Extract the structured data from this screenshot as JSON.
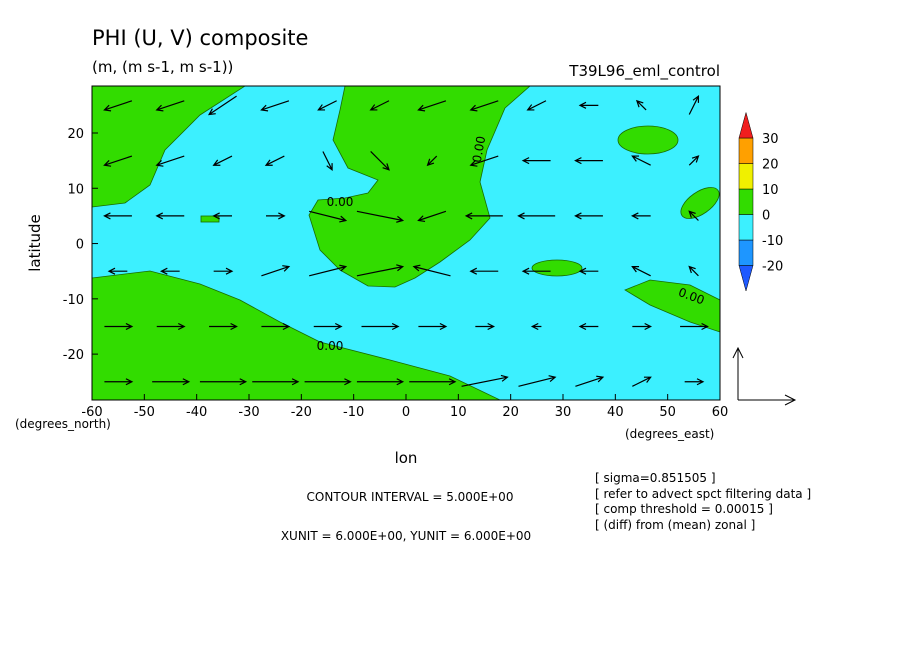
{
  "chart_data": {
    "type": "vector_contour",
    "title": "PHI (U, V) composite",
    "subtitle": "(m, (m s-1, m s-1))",
    "run_label": "T39L96_eml_control",
    "x_label": "lon",
    "y_label": "latitude",
    "y_units": "(degrees_north)",
    "x_units": "(degrees_east)",
    "xlim": [
      -60,
      60
    ],
    "ylim": [
      -28.3,
      28.5
    ],
    "xticks": [
      -60,
      -50,
      -40,
      -30,
      -20,
      -10,
      0,
      10,
      20,
      30,
      40,
      50,
      60
    ],
    "yticks": [
      -20,
      -10,
      0,
      10,
      20
    ],
    "contour_label": "0.00",
    "levels": [
      -20,
      -10,
      0,
      10,
      20,
      30
    ],
    "colors": [
      "#1e5aff",
      "#1e96ff",
      "#3cf0ff",
      "#32dc00",
      "#f0f000",
      "#ffa000",
      "#f01e1e"
    ],
    "contour_interval_text": "CONTOUR INTERVAL = 5.000E+00",
    "unit_text": "XUNIT = 6.000E+00, YUNIT = 6.000E+00",
    "notes": [
      "[ sigma=0.851505 ]",
      "[ refer to advect spct filtering data ]",
      "[ comp threshold = 0.00015 ]",
      "[ (diff) from (mean) zonal ]"
    ],
    "vectors": {
      "lon": [
        -55,
        -45,
        -35,
        -25,
        -15,
        -5,
        5,
        15,
        25,
        35,
        45,
        55
      ],
      "lat": [
        25,
        15,
        5,
        -5,
        -15,
        -25
      ],
      "u": [
        [
          -3,
          -3,
          -3,
          -3,
          -2,
          -2,
          -3,
          -3,
          -2,
          -2,
          -1,
          1
        ],
        [
          -3,
          -3,
          -2,
          -2,
          1,
          2,
          -1,
          -3,
          -3,
          -3,
          -2,
          1
        ],
        [
          -3,
          -3,
          -2,
          2,
          4,
          5,
          -3,
          -4,
          -4,
          -3,
          -2,
          -1
        ],
        [
          -2,
          -2,
          2,
          3,
          4,
          5,
          -4,
          -3,
          -3,
          -2,
          -2,
          -1
        ],
        [
          3,
          3,
          3,
          3,
          3,
          4,
          3,
          2,
          -1,
          -2,
          2,
          3
        ],
        [
          3,
          4,
          5,
          5,
          5,
          5,
          5,
          5,
          4,
          3,
          2,
          2
        ]
      ],
      "v": [
        [
          -1,
          -1,
          -2,
          -1,
          -1,
          -1,
          -1,
          -1,
          -1,
          0,
          1,
          2
        ],
        [
          -1,
          -1,
          -1,
          -1,
          -2,
          -2,
          -1,
          -1,
          0,
          0,
          1,
          1
        ],
        [
          0,
          0,
          0,
          0,
          -1,
          -1,
          -1,
          0,
          0,
          0,
          0,
          1
        ],
        [
          0,
          0,
          0,
          1,
          1,
          1,
          1,
          0,
          0,
          0,
          1,
          1
        ],
        [
          0,
          0,
          0,
          0,
          0,
          0,
          0,
          0,
          0,
          0,
          0,
          0
        ],
        [
          0,
          0,
          0,
          0,
          0,
          0,
          0,
          1,
          1,
          1,
          1,
          0
        ]
      ],
      "unit": 6
    }
  }
}
